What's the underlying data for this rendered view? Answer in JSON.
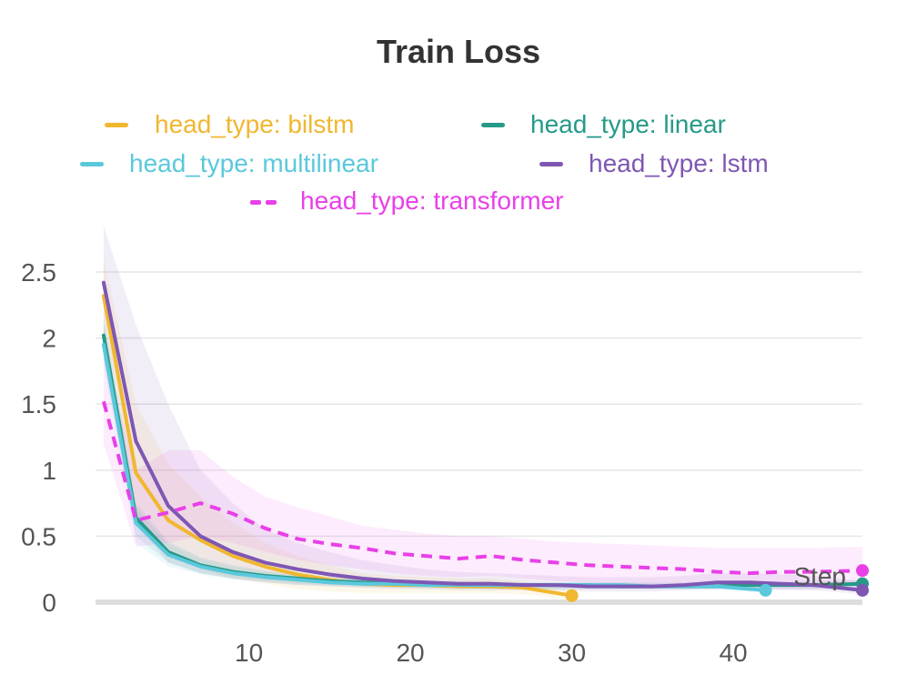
{
  "chart_data": {
    "type": "line",
    "title": "Train Loss",
    "xlabel": "Step",
    "ylabel": "",
    "xlim": [
      0.5,
      48
    ],
    "ylim": [
      0,
      2.7
    ],
    "xticks": [
      10,
      20,
      30,
      40
    ],
    "yticks": [
      0,
      0.5,
      1,
      1.5,
      2,
      2.5
    ],
    "ytick_labels": [
      "0",
      "0.5",
      "1",
      "1.5",
      "2",
      "2.5"
    ],
    "grid": "horizontal",
    "legend_position": "top",
    "series": [
      {
        "name": "head_type: bilstm",
        "color": "#F0B730",
        "dash": "solid",
        "x": [
          1,
          3,
          5,
          7,
          9,
          11,
          13,
          15,
          17,
          19,
          21,
          23,
          25,
          27,
          30
        ],
        "values": [
          2.32,
          0.98,
          0.62,
          0.47,
          0.35,
          0.27,
          0.21,
          0.17,
          0.14,
          0.13,
          0.13,
          0.12,
          0.12,
          0.11,
          0.05
        ],
        "band_upper": [
          2.6,
          1.5,
          1.05,
          0.8,
          0.6,
          0.45,
          0.35,
          0.28,
          0.22,
          0.2,
          0.19,
          0.18,
          0.18,
          0.16,
          0.09
        ],
        "band_lower": [
          2.0,
          0.6,
          0.35,
          0.25,
          0.18,
          0.14,
          0.1,
          0.08,
          0.07,
          0.07,
          0.07,
          0.07,
          0.07,
          0.06,
          0.02
        ]
      },
      {
        "name": "head_type: linear",
        "color": "#259A88",
        "dash": "solid",
        "x": [
          1,
          3,
          5,
          7,
          9,
          11,
          13,
          15,
          17,
          19,
          21,
          23,
          25,
          27,
          29,
          31,
          33,
          35,
          37,
          39,
          41,
          43,
          45,
          48
        ],
        "values": [
          2.02,
          0.64,
          0.38,
          0.28,
          0.23,
          0.2,
          0.18,
          0.16,
          0.15,
          0.14,
          0.14,
          0.13,
          0.13,
          0.13,
          0.13,
          0.13,
          0.12,
          0.12,
          0.12,
          0.12,
          0.13,
          0.13,
          0.13,
          0.14
        ],
        "band_upper": [
          2.15,
          0.75,
          0.46,
          0.34,
          0.28,
          0.24,
          0.21,
          0.19,
          0.18,
          0.17,
          0.16,
          0.16,
          0.16,
          0.15,
          0.15,
          0.15,
          0.15,
          0.15,
          0.15,
          0.15,
          0.15,
          0.15,
          0.16,
          0.17
        ],
        "band_lower": [
          1.85,
          0.5,
          0.3,
          0.22,
          0.18,
          0.16,
          0.14,
          0.13,
          0.12,
          0.11,
          0.11,
          0.11,
          0.1,
          0.1,
          0.1,
          0.1,
          0.1,
          0.1,
          0.1,
          0.1,
          0.1,
          0.1,
          0.1,
          0.11
        ]
      },
      {
        "name": "head_type: multilinear",
        "color": "#5BC8DC",
        "dash": "solid",
        "x": [
          1,
          3,
          5,
          7,
          9,
          11,
          13,
          15,
          17,
          19,
          21,
          23,
          25,
          27,
          29,
          31,
          33,
          35,
          37,
          39,
          42
        ],
        "values": [
          1.95,
          0.6,
          0.36,
          0.27,
          0.22,
          0.19,
          0.17,
          0.15,
          0.14,
          0.14,
          0.13,
          0.13,
          0.13,
          0.13,
          0.13,
          0.13,
          0.13,
          0.12,
          0.12,
          0.12,
          0.09
        ],
        "band_upper": [
          2.1,
          0.72,
          0.44,
          0.33,
          0.27,
          0.23,
          0.2,
          0.18,
          0.17,
          0.16,
          0.16,
          0.15,
          0.15,
          0.15,
          0.15,
          0.15,
          0.15,
          0.14,
          0.14,
          0.14,
          0.12
        ],
        "band_lower": [
          1.8,
          0.45,
          0.27,
          0.21,
          0.17,
          0.15,
          0.13,
          0.12,
          0.11,
          0.11,
          0.1,
          0.1,
          0.1,
          0.1,
          0.1,
          0.1,
          0.1,
          0.1,
          0.1,
          0.1,
          0.07
        ]
      },
      {
        "name": "head_type: lstm",
        "color": "#7E57B3",
        "dash": "solid",
        "x": [
          1,
          3,
          5,
          7,
          9,
          11,
          13,
          15,
          17,
          19,
          21,
          23,
          25,
          27,
          29,
          31,
          33,
          35,
          37,
          39,
          41,
          43,
          45,
          48
        ],
        "values": [
          2.42,
          1.22,
          0.73,
          0.5,
          0.38,
          0.3,
          0.25,
          0.21,
          0.18,
          0.16,
          0.15,
          0.14,
          0.14,
          0.13,
          0.13,
          0.12,
          0.12,
          0.12,
          0.13,
          0.15,
          0.15,
          0.14,
          0.13,
          0.09
        ],
        "band_upper": [
          2.85,
          2.1,
          1.5,
          1.0,
          0.75,
          0.55,
          0.45,
          0.38,
          0.32,
          0.28,
          0.25,
          0.23,
          0.22,
          0.21,
          0.2,
          0.19,
          0.19,
          0.19,
          0.2,
          0.22,
          0.22,
          0.21,
          0.2,
          0.16
        ],
        "band_lower": [
          2.0,
          0.6,
          0.3,
          0.22,
          0.18,
          0.15,
          0.13,
          0.12,
          0.11,
          0.1,
          0.1,
          0.09,
          0.09,
          0.09,
          0.09,
          0.08,
          0.08,
          0.08,
          0.09,
          0.1,
          0.1,
          0.09,
          0.09,
          0.06
        ]
      },
      {
        "name": "head_type: transformer",
        "color": "#E840E8",
        "dash": "dashed",
        "x": [
          1,
          3,
          5,
          7,
          9,
          11,
          13,
          15,
          17,
          19,
          21,
          23,
          25,
          27,
          29,
          31,
          33,
          35,
          37,
          39,
          41,
          43,
          45,
          48
        ],
        "values": [
          1.52,
          0.62,
          0.68,
          0.75,
          0.67,
          0.56,
          0.48,
          0.44,
          0.41,
          0.37,
          0.35,
          0.33,
          0.35,
          0.32,
          0.3,
          0.28,
          0.27,
          0.26,
          0.25,
          0.23,
          0.22,
          0.23,
          0.23,
          0.24
        ],
        "band_upper": [
          1.9,
          1.0,
          1.15,
          1.15,
          0.95,
          0.8,
          0.72,
          0.65,
          0.58,
          0.55,
          0.52,
          0.5,
          0.5,
          0.48,
          0.46,
          0.45,
          0.44,
          0.43,
          0.42,
          0.41,
          0.41,
          0.41,
          0.41,
          0.42
        ],
        "band_lower": [
          1.2,
          0.42,
          0.45,
          0.5,
          0.45,
          0.38,
          0.32,
          0.28,
          0.25,
          0.22,
          0.2,
          0.19,
          0.2,
          0.18,
          0.16,
          0.15,
          0.14,
          0.13,
          0.12,
          0.11,
          0.1,
          0.1,
          0.1,
          0.1
        ]
      }
    ]
  }
}
